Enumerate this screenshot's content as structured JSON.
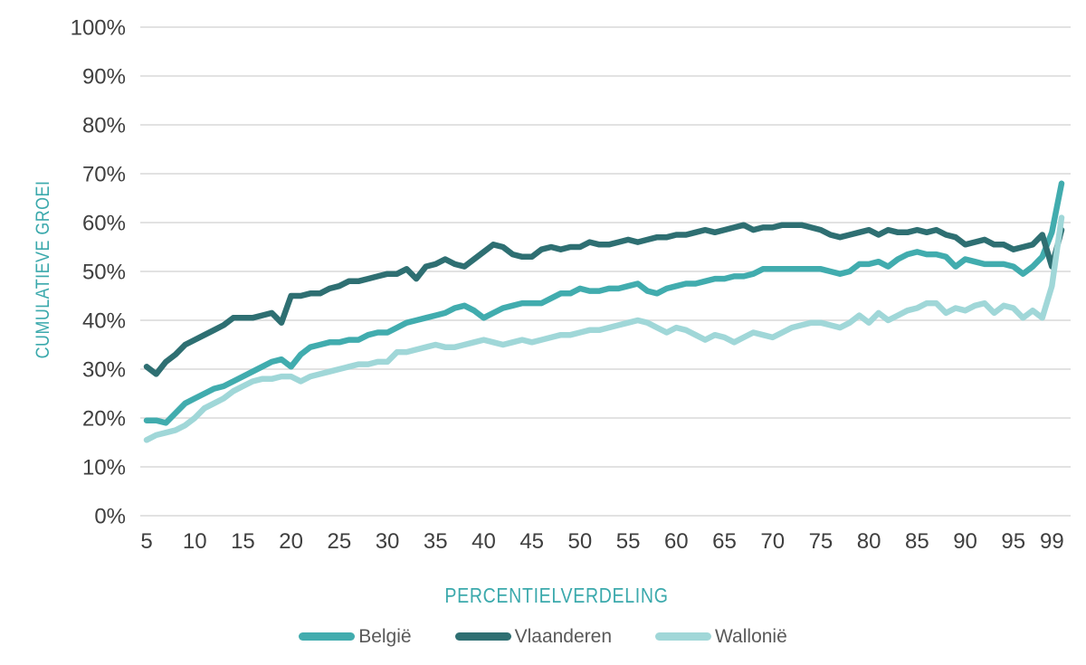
{
  "chart_data": {
    "type": "line",
    "title": "",
    "xlabel": "PERCENTIELVERDELING",
    "ylabel": "CUMULATIEVE GROEI",
    "x": {
      "start": 5,
      "end": 100,
      "step": 1,
      "unit": "percentile"
    },
    "x_ticks": [
      5,
      10,
      15,
      20,
      25,
      30,
      35,
      40,
      45,
      50,
      55,
      60,
      65,
      70,
      75,
      80,
      85,
      90,
      95,
      99
    ],
    "ylim": [
      0,
      100
    ],
    "y_tick_labels": [
      "0%",
      "10%",
      "20%",
      "30%",
      "40%",
      "50%",
      "60%",
      "70%",
      "80%",
      "90%",
      "100%"
    ],
    "grid": "horizontal-only",
    "legend_position": "bottom",
    "colors": {
      "axis_title_teal": "#3BA9AC",
      "tick_text": "#3F3F3F",
      "legend_text": "#595959",
      "gridline": "#D9D9D9"
    },
    "series": [
      {
        "name": "België",
        "color": "#41ACAE",
        "values": [
          19.5,
          19.5,
          19,
          21,
          23,
          24,
          25,
          26,
          26.5,
          27.5,
          28.5,
          29.5,
          30.5,
          31.5,
          32,
          30.5,
          33,
          34.5,
          35,
          35.5,
          35.5,
          36,
          36,
          37,
          37.5,
          37.5,
          38.5,
          39.5,
          40,
          40.5,
          41,
          41.5,
          42.5,
          43,
          42,
          40.5,
          41.5,
          42.5,
          43,
          43.5,
          43.5,
          43.5,
          44.5,
          45.5,
          45.5,
          46.5,
          46,
          46,
          46.5,
          46.5,
          47,
          47.5,
          46,
          45.5,
          46.5,
          47,
          47.5,
          47.5,
          48,
          48.5,
          48.5,
          49,
          49,
          49.5,
          50.5,
          50.5,
          50.5,
          50.5,
          50.5,
          50.5,
          50.5,
          50,
          49.5,
          50,
          51.5,
          51.5,
          52,
          51,
          52.5,
          53.5,
          54,
          53.5,
          53.5,
          53,
          51,
          52.5,
          52,
          51.5,
          51.5,
          51.5,
          51,
          49.5,
          51,
          53,
          58,
          68
        ]
      },
      {
        "name": "Vlaanderen",
        "color": "#2E6F72",
        "values": [
          30.5,
          29,
          31.5,
          33,
          35,
          36,
          37,
          38,
          39,
          40.5,
          40.5,
          40.5,
          41,
          41.5,
          39.5,
          45,
          45,
          45.5,
          45.5,
          46.5,
          47,
          48,
          48,
          48.5,
          49,
          49.5,
          49.5,
          50.5,
          48.5,
          51,
          51.5,
          52.5,
          51.5,
          51,
          52.5,
          54,
          55.5,
          55,
          53.5,
          53,
          53,
          54.5,
          55,
          54.5,
          55,
          55,
          56,
          55.5,
          55.5,
          56,
          56.5,
          56,
          56.5,
          57,
          57,
          57.5,
          57.5,
          58,
          58.5,
          58,
          58.5,
          59,
          59.5,
          58.5,
          59,
          59,
          59.5,
          59.5,
          59.5,
          59,
          58.5,
          57.5,
          57,
          57.5,
          58,
          58.5,
          57.5,
          58.5,
          58,
          58,
          58.5,
          58,
          58.5,
          57.5,
          57,
          55.5,
          56,
          56.5,
          55.5,
          55.5,
          54.5,
          55,
          55.5,
          57.5,
          51,
          58.5
        ]
      },
      {
        "name": "Wallonië",
        "color": "#A0D7D8",
        "values": [
          15.5,
          16.5,
          17,
          17.5,
          18.5,
          20,
          22,
          23,
          24,
          25.5,
          26.5,
          27.5,
          28,
          28,
          28.5,
          28.5,
          27.5,
          28.5,
          29,
          29.5,
          30,
          30.5,
          31,
          31,
          31.5,
          31.5,
          33.5,
          33.5,
          34,
          34.5,
          35,
          34.5,
          34.5,
          35,
          35.5,
          36,
          35.5,
          35,
          35.5,
          36,
          35.5,
          36,
          36.5,
          37,
          37,
          37.5,
          38,
          38,
          38.5,
          39,
          39.5,
          40,
          39.5,
          38.5,
          37.5,
          38.5,
          38,
          37,
          36,
          37,
          36.5,
          35.5,
          36.5,
          37.5,
          37,
          36.5,
          37.5,
          38.5,
          39,
          39.5,
          39.5,
          39,
          38.5,
          39.5,
          41,
          39.5,
          41.5,
          40,
          41,
          42,
          42.5,
          43.5,
          43.5,
          41.5,
          42.5,
          42,
          43,
          43.5,
          41.5,
          43,
          42.5,
          40.5,
          42,
          40.5,
          47,
          61
        ]
      }
    ]
  }
}
